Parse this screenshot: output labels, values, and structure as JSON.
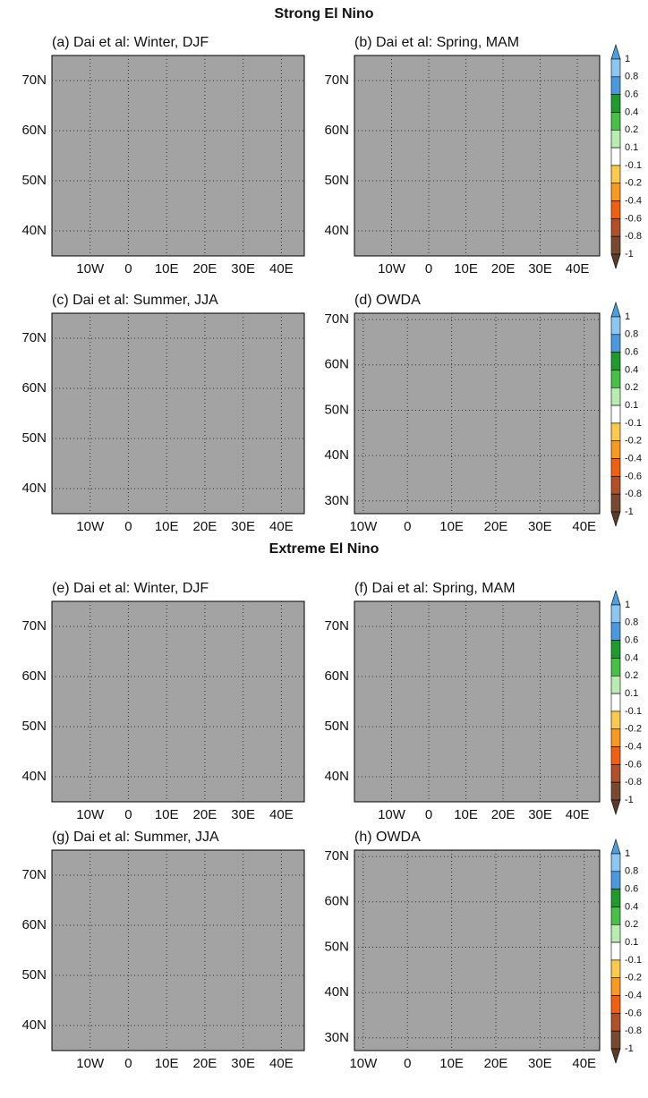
{
  "sections": [
    {
      "title": "Strong El Nino",
      "panels": [
        {
          "title": "(a) Dai et al: Winter, DJF",
          "xlim": [
            -20,
            46
          ],
          "ylim": [
            35,
            75
          ],
          "xticks": [
            {
              "value": -10,
              "label": "10W"
            },
            0,
            {
              "value": 10,
              "label": "10E"
            },
            {
              "value": 20,
              "label": "20E"
            },
            {
              "value": 30,
              "label": "30E"
            },
            {
              "value": 40,
              "label": "40E"
            }
          ],
          "yticks": [
            {
              "value": 40,
              "label": "40N"
            },
            {
              "value": 50,
              "label": "50N"
            },
            {
              "value": 60,
              "label": "60N"
            },
            {
              "value": 70,
              "label": "70N"
            }
          ]
        },
        {
          "title": "(b) Dai et al: Spring, MAM",
          "xlim": [
            -20,
            46
          ],
          "ylim": [
            35,
            75
          ],
          "xticks": [
            {
              "value": -10,
              "label": "10W"
            },
            0,
            {
              "value": 10,
              "label": "10E"
            },
            {
              "value": 20,
              "label": "20E"
            },
            {
              "value": 30,
              "label": "30E"
            },
            {
              "value": 40,
              "label": "40E"
            }
          ],
          "yticks": [
            {
              "value": 40,
              "label": "40N"
            },
            {
              "value": 50,
              "label": "50N"
            },
            {
              "value": 60,
              "label": "60N"
            },
            {
              "value": 70,
              "label": "70N"
            }
          ]
        },
        {
          "title": "(c) Dai et al: Summer, JJA",
          "xlim": [
            -20,
            46
          ],
          "ylim": [
            35,
            75
          ],
          "xticks": [
            {
              "value": -10,
              "label": "10W"
            },
            0,
            {
              "value": 10,
              "label": "10E"
            },
            {
              "value": 20,
              "label": "20E"
            },
            {
              "value": 30,
              "label": "30E"
            },
            {
              "value": 40,
              "label": "40E"
            }
          ],
          "yticks": [
            {
              "value": 40,
              "label": "40N"
            },
            {
              "value": 50,
              "label": "50N"
            },
            {
              "value": 60,
              "label": "60N"
            },
            {
              "value": 70,
              "label": "70N"
            }
          ]
        },
        {
          "title": "(d) OWDA",
          "xlim": [
            -12,
            43.5
          ],
          "ylim": [
            27.2,
            71.4
          ],
          "xticks": [
            {
              "value": -10,
              "label": "10W"
            },
            0,
            {
              "value": 10,
              "label": "10E"
            },
            {
              "value": 20,
              "label": "20E"
            },
            {
              "value": 30,
              "label": "30E"
            },
            {
              "value": 40,
              "label": "40E"
            }
          ],
          "yticks": [
            {
              "value": 30,
              "label": "30N"
            },
            {
              "value": 40,
              "label": "40N"
            },
            {
              "value": 50,
              "label": "50N"
            },
            {
              "value": 60,
              "label": "60N"
            },
            {
              "value": 70,
              "label": "70N"
            }
          ]
        }
      ],
      "colorbars": [
        {
          "levels": [
            1,
            0.8,
            0.6,
            0.4,
            0.2,
            0.1,
            -0.1,
            -0.2,
            -0.4,
            -0.6,
            -0.8,
            -1
          ],
          "colors": [
            "#4f9fe0",
            "#8cc6f2",
            "#4a98e0",
            "#1f9a2f",
            "#48c048",
            "#b8ecb0",
            "#ffffff",
            "#fbc850",
            "#f89a20",
            "#f06010",
            "#b05028",
            "#7a4a30",
            "#5a3a28"
          ]
        },
        {
          "levels": [
            1,
            0.8,
            0.6,
            0.4,
            0.2,
            0.1,
            -0.1,
            -0.2,
            -0.4,
            -0.6,
            -0.8,
            -1
          ],
          "colors": [
            "#4f9fe0",
            "#8cc6f2",
            "#4a98e0",
            "#1f9a2f",
            "#48c048",
            "#b8ecb0",
            "#ffffff",
            "#fbc850",
            "#f89a20",
            "#f06010",
            "#b05028",
            "#7a4a30",
            "#5a3a28"
          ]
        }
      ]
    },
    {
      "title": "Extreme El Nino",
      "panels": [
        {
          "title": "(e) Dai et al: Winter, DJF",
          "xlim": [
            -20,
            46
          ],
          "ylim": [
            35,
            75
          ],
          "xticks": [
            {
              "value": -10,
              "label": "10W"
            },
            0,
            {
              "value": 10,
              "label": "10E"
            },
            {
              "value": 20,
              "label": "20E"
            },
            {
              "value": 30,
              "label": "30E"
            },
            {
              "value": 40,
              "label": "40E"
            }
          ],
          "yticks": [
            {
              "value": 40,
              "label": "40N"
            },
            {
              "value": 50,
              "label": "50N"
            },
            {
              "value": 60,
              "label": "60N"
            },
            {
              "value": 70,
              "label": "70N"
            }
          ]
        },
        {
          "title": "(f) Dai et al: Spring, MAM",
          "xlim": [
            -20,
            46
          ],
          "ylim": [
            35,
            75
          ],
          "xticks": [
            {
              "value": -10,
              "label": "10W"
            },
            0,
            {
              "value": 10,
              "label": "10E"
            },
            {
              "value": 20,
              "label": "20E"
            },
            {
              "value": 30,
              "label": "30E"
            },
            {
              "value": 40,
              "label": "40E"
            }
          ],
          "yticks": [
            {
              "value": 40,
              "label": "40N"
            },
            {
              "value": 50,
              "label": "50N"
            },
            {
              "value": 60,
              "label": "60N"
            },
            {
              "value": 70,
              "label": "70N"
            }
          ]
        },
        {
          "title": "(g) Dai et al: Summer, JJA",
          "xlim": [
            -20,
            46
          ],
          "ylim": [
            35,
            75
          ],
          "xticks": [
            {
              "value": -10,
              "label": "10W"
            },
            0,
            {
              "value": 10,
              "label": "10E"
            },
            {
              "value": 20,
              "label": "20E"
            },
            {
              "value": 30,
              "label": "30E"
            },
            {
              "value": 40,
              "label": "40E"
            }
          ],
          "yticks": [
            {
              "value": 40,
              "label": "40N"
            },
            {
              "value": 50,
              "label": "50N"
            },
            {
              "value": 60,
              "label": "60N"
            },
            {
              "value": 70,
              "label": "70N"
            }
          ]
        },
        {
          "title": "(h) OWDA",
          "xlim": [
            -12,
            43.5
          ],
          "ylim": [
            27.2,
            71.4
          ],
          "xticks": [
            {
              "value": -10,
              "label": "10W"
            },
            0,
            {
              "value": 10,
              "label": "10E"
            },
            {
              "value": 20,
              "label": "20E"
            },
            {
              "value": 30,
              "label": "30E"
            },
            {
              "value": 40,
              "label": "40E"
            }
          ],
          "yticks": [
            {
              "value": 30,
              "label": "30N"
            },
            {
              "value": 40,
              "label": "40N"
            },
            {
              "value": 50,
              "label": "50N"
            },
            {
              "value": 60,
              "label": "60N"
            },
            {
              "value": 70,
              "label": "70N"
            }
          ]
        }
      ],
      "colorbars": [
        {
          "levels": [
            1,
            0.8,
            0.6,
            0.4,
            0.2,
            0.1,
            -0.1,
            -0.2,
            -0.4,
            -0.6,
            -0.8,
            -1
          ],
          "colors": [
            "#4f9fe0",
            "#8cc6f2",
            "#4a98e0",
            "#1f9a2f",
            "#48c048",
            "#b8ecb0",
            "#ffffff",
            "#fbc850",
            "#f89a20",
            "#f06010",
            "#b05028",
            "#7a4a30",
            "#5a3a28"
          ]
        },
        {
          "levels": [
            1,
            0.8,
            0.6,
            0.4,
            0.2,
            0.1,
            -0.1,
            -0.2,
            -0.4,
            -0.6,
            -0.8,
            -1
          ],
          "colors": [
            "#4f9fe0",
            "#8cc6f2",
            "#4a98e0",
            "#1f9a2f",
            "#48c048",
            "#b8ecb0",
            "#ffffff",
            "#fbc850",
            "#f89a20",
            "#f06010",
            "#b05028",
            "#7a4a30",
            "#5a3a28"
          ]
        }
      ]
    }
  ]
}
